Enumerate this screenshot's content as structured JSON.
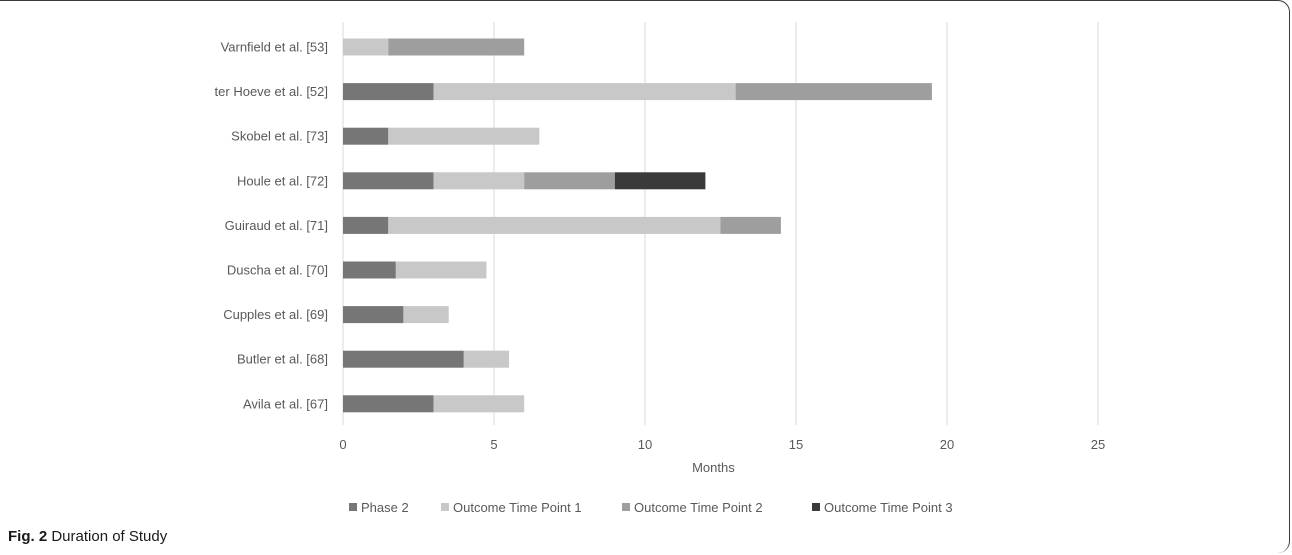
{
  "caption": {
    "label": "Fig. 2",
    "text": "Duration of Study"
  },
  "chart_data": {
    "type": "bar",
    "orientation": "horizontal",
    "stacked": true,
    "xlabel": "Months",
    "ylabel": "",
    "xlim": [
      0,
      25
    ],
    "xticks": [
      0,
      5,
      10,
      15,
      20,
      25
    ],
    "grid": "vertical",
    "legend_position": "bottom",
    "categories": [
      "Varnfield et al. [53]",
      "ter Hoeve et al. [52]",
      "Skobel et al. [73]",
      "Houle et al. [72]",
      "Guiraud et al. [71]",
      "Duscha et al. [70]",
      "Cupples et al. [69]",
      "Butler et al. [68]",
      "Avila et al. [67]"
    ],
    "series": [
      {
        "name": "Phase 2",
        "color": "#767676",
        "values": [
          0,
          3,
          1.5,
          3,
          1.5,
          1.75,
          2,
          4,
          3
        ]
      },
      {
        "name": "Outcome Time Point 1",
        "color": "#c8c8c8",
        "values": [
          1.5,
          10,
          5,
          3,
          11,
          3,
          1.5,
          1.5,
          3
        ]
      },
      {
        "name": "Outcome Time Point 2",
        "color": "#9e9e9e",
        "values": [
          4.5,
          6.5,
          0,
          3,
          2,
          0,
          0,
          0,
          0
        ]
      },
      {
        "name": "Outcome Time Point 3",
        "color": "#3a3a3a",
        "values": [
          0,
          0,
          0,
          3,
          0,
          0,
          0,
          0,
          0
        ]
      }
    ]
  }
}
